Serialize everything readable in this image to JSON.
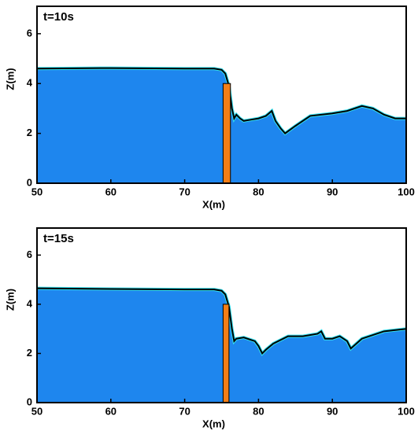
{
  "chart_data": [
    {
      "type": "area",
      "title": "t=10s",
      "xlabel": "X(m)",
      "ylabel": "Z(m)",
      "x": [
        50,
        60,
        70,
        74,
        75,
        75.5,
        76,
        76.4,
        76.7,
        77,
        77.5,
        78,
        79,
        80,
        81,
        81.8,
        82.3,
        83,
        83.6,
        85,
        87,
        90,
        92,
        94,
        95.5,
        97,
        98.5,
        100
      ],
      "values": [
        4.6,
        4.62,
        4.6,
        4.6,
        4.55,
        4.4,
        3.9,
        3.0,
        2.6,
        2.75,
        2.6,
        2.5,
        2.55,
        2.6,
        2.7,
        2.9,
        2.5,
        2.2,
        2.0,
        2.3,
        2.7,
        2.8,
        2.9,
        3.1,
        3.0,
        2.75,
        2.6,
        2.6
      ],
      "color": "#1e86ee",
      "gate_x": [
        75.2,
        76.2
      ],
      "gate_z": 4.0,
      "xlim": [
        50,
        100
      ],
      "ylim": [
        0,
        7.1
      ],
      "xticks": [
        50,
        60,
        70,
        80,
        90,
        100
      ],
      "yticks": [
        0,
        2,
        4,
        6
      ]
    },
    {
      "type": "area",
      "title": "t=15s",
      "xlabel": "X(m)",
      "ylabel": "Z(m)",
      "x": [
        50,
        60,
        70,
        74,
        75,
        75.5,
        76,
        76.4,
        76.7,
        77,
        78,
        79,
        79.5,
        80,
        80.5,
        81,
        82,
        84,
        86,
        88,
        88.5,
        89,
        90,
        91,
        92,
        92.5,
        94,
        97,
        100
      ],
      "values": [
        4.65,
        4.62,
        4.6,
        4.6,
        4.55,
        4.4,
        3.9,
        3.0,
        2.5,
        2.6,
        2.65,
        2.55,
        2.5,
        2.3,
        2.0,
        2.15,
        2.4,
        2.7,
        2.7,
        2.8,
        2.9,
        2.6,
        2.6,
        2.7,
        2.5,
        2.2,
        2.6,
        2.9,
        3.0
      ],
      "color": "#1e86ee",
      "gate_x": [
        75.2,
        76.0
      ],
      "gate_z": 4.0,
      "xlim": [
        50,
        100
      ],
      "ylim": [
        0,
        7.1
      ],
      "xticks": [
        50,
        60,
        70,
        80,
        90,
        100
      ],
      "yticks": [
        0,
        2,
        4,
        6
      ]
    }
  ]
}
